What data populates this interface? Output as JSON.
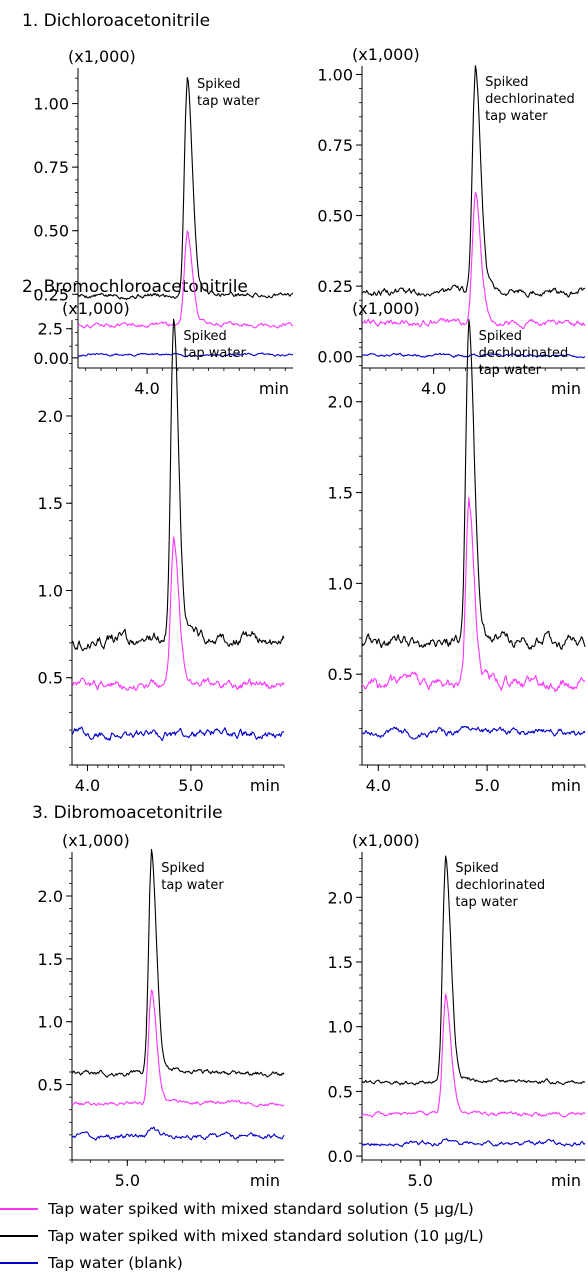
{
  "panels": [
    {
      "title": "1. Dichloroacetonitrile",
      "charts": [
        {
          "annotation": [
            "Spiked",
            "tap water"
          ],
          "scale_label": "(x1,000)"
        },
        {
          "annotation": [
            "Spiked",
            "dechlorinated",
            "tap water"
          ],
          "scale_label": "(x1,000)"
        }
      ]
    },
    {
      "title": "2. Bromochloroacetonitrile",
      "charts": [
        {
          "annotation": [
            "Spiked",
            "tap water"
          ],
          "scale_label": "(x1,000)"
        },
        {
          "annotation": [
            "Spiked",
            "dechlorinated",
            "tap water"
          ],
          "scale_label": "(x1,000)"
        }
      ]
    },
    {
      "title": "3. Dibromoacetonitrile",
      "charts": [
        {
          "annotation": [
            "Spiked",
            "tap water"
          ],
          "scale_label": "(x1,000)"
        },
        {
          "annotation": [
            "Spiked",
            "dechlorinated",
            "tap water"
          ],
          "scale_label": "(x1,000)"
        }
      ]
    }
  ],
  "legend": [
    {
      "label": "Tap water spiked with mixed standard solution (5 µg/L)",
      "color": "#ff33ff"
    },
    {
      "label": "Tap water spiked with mixed standard solution (10 µg/L)",
      "color": "#000000"
    },
    {
      "label": "Tap water (blank)",
      "color": "#0000cc"
    }
  ],
  "chart_data": [
    {
      "type": "line",
      "title": "1. Dichloroacetonitrile",
      "annotation": "Spiked tap water",
      "xlabel": "min",
      "ylabel": "(x1,000)",
      "xlim": [
        3.55,
        4.95
      ],
      "ylim": [
        -0.04,
        1.14
      ],
      "xticks": [
        4.0
      ],
      "xticklabels": [
        "4.0"
      ],
      "yticks": [
        0.0,
        0.25,
        0.5,
        0.75,
        1.0
      ],
      "yticklabels": [
        "0.00",
        "0.25",
        "0.50",
        "0.75",
        "1.00"
      ],
      "series": [
        {
          "color": "#000000",
          "baseline": 0.245,
          "peak_x": 4.26,
          "peak_height": 0.82,
          "noise": 0.006
        },
        {
          "color": "#ff33ff",
          "baseline": 0.13,
          "peak_x": 4.26,
          "peak_height": 0.35,
          "noise": 0.005
        },
        {
          "color": "#0000cc",
          "baseline": 0.012,
          "peak_x": 4.26,
          "peak_height": 0.0,
          "noise": 0.003
        }
      ]
    },
    {
      "type": "line",
      "title": "1. Dichloroacetonitrile",
      "annotation": "Spiked dechlorinated tap water",
      "xlabel": "min",
      "ylabel": "(x1,000)",
      "xlim": [
        3.55,
        4.95
      ],
      "ylim": [
        -0.04,
        1.03
      ],
      "xticks": [
        4.0
      ],
      "xticklabels": [
        "4.0"
      ],
      "yticks": [
        0.0,
        0.25,
        0.5,
        0.75,
        1.0
      ],
      "yticklabels": [
        "0.00",
        "0.25",
        "0.50",
        "0.75",
        "1.00"
      ],
      "series": [
        {
          "color": "#000000",
          "baseline": 0.23,
          "peak_x": 4.26,
          "peak_height": 0.76,
          "noise": 0.008
        },
        {
          "color": "#ff33ff",
          "baseline": 0.12,
          "peak_x": 4.26,
          "peak_height": 0.43,
          "noise": 0.007
        },
        {
          "color": "#0000cc",
          "baseline": 0.005,
          "peak_x": 4.26,
          "peak_height": 0.0,
          "noise": 0.003
        }
      ]
    },
    {
      "type": "line",
      "title": "2. Bromochloroacetonitrile",
      "annotation": "Spiked tap water",
      "xlabel": "min",
      "ylabel": "(x1,000)",
      "xlim": [
        3.85,
        5.9
      ],
      "ylim": [
        0.0,
        2.55
      ],
      "xticks": [
        4.0,
        5.0
      ],
      "xticklabels": [
        "4.0",
        "5.0"
      ],
      "yticks": [
        0.5,
        1.0,
        1.5,
        2.0,
        2.5
      ],
      "yticklabels": [
        "0.5",
        "1.0",
        "1.5",
        "2.0",
        "2.5"
      ],
      "series": [
        {
          "color": "#000000",
          "baseline": 0.72,
          "peak_x": 4.83,
          "peak_height": 1.75,
          "noise": 0.02
        },
        {
          "color": "#ff33ff",
          "baseline": 0.46,
          "peak_x": 4.83,
          "peak_height": 0.8,
          "noise": 0.015
        },
        {
          "color": "#0000cc",
          "baseline": 0.18,
          "peak_x": 4.83,
          "peak_height": 0.0,
          "noise": 0.015
        }
      ]
    },
    {
      "type": "line",
      "title": "2. Bromochloroacetonitrile",
      "annotation": "Spiked dechlorinated tap water",
      "xlabel": "min",
      "ylabel": "(x1,000)",
      "xlim": [
        3.85,
        5.9
      ],
      "ylim": [
        0.0,
        2.45
      ],
      "xticks": [
        4.0,
        5.0
      ],
      "xticklabels": [
        "4.0",
        "5.0"
      ],
      "yticks": [
        0.5,
        1.0,
        1.5,
        2.0
      ],
      "yticklabels": [
        "0.5",
        "1.0",
        "1.5",
        "2.0"
      ],
      "series": [
        {
          "color": "#000000",
          "baseline": 0.68,
          "peak_x": 4.83,
          "peak_height": 1.68,
          "noise": 0.02
        },
        {
          "color": "#ff33ff",
          "baseline": 0.45,
          "peak_x": 4.83,
          "peak_height": 0.93,
          "noise": 0.02
        },
        {
          "color": "#0000cc",
          "baseline": 0.18,
          "peak_x": 4.83,
          "peak_height": 0.0,
          "noise": 0.012
        }
      ]
    },
    {
      "type": "line",
      "title": "3. Dibromoacetonitrile",
      "annotation": "Spiked tap water",
      "xlabel": "min",
      "ylabel": "(x1,000)",
      "xlim": [
        4.7,
        5.85
      ],
      "ylim": [
        -0.1,
        2.35
      ],
      "xticks": [
        5.0
      ],
      "xticklabels": [
        "5.0"
      ],
      "yticks": [
        0.5,
        1.0,
        1.5,
        2.0
      ],
      "yticklabels": [
        "0.5",
        "1.0",
        "1.5",
        "2.0"
      ],
      "series": [
        {
          "color": "#000000",
          "baseline": 0.59,
          "peak_x": 5.13,
          "peak_height": 1.69,
          "noise": 0.012
        },
        {
          "color": "#ff33ff",
          "baseline": 0.35,
          "peak_x": 5.13,
          "peak_height": 0.86,
          "noise": 0.01
        },
        {
          "color": "#0000cc",
          "baseline": 0.09,
          "peak_x": 5.13,
          "peak_height": 0.05,
          "noise": 0.012
        }
      ]
    },
    {
      "type": "line",
      "title": "3. Dibromoacetonitrile",
      "annotation": "Spiked dechlorinated tap water",
      "xlabel": "min",
      "ylabel": "(x1,000)",
      "xlim": [
        4.7,
        5.85
      ],
      "ylim": [
        -0.03,
        2.35
      ],
      "xticks": [
        5.0
      ],
      "xticklabels": [
        "5.0"
      ],
      "yticks": [
        0.0,
        0.5,
        1.0,
        1.5,
        2.0
      ],
      "yticklabels": [
        "0.0",
        "0.5",
        "1.0",
        "1.5",
        "2.0"
      ],
      "series": [
        {
          "color": "#000000",
          "baseline": 0.57,
          "peak_x": 5.13,
          "peak_height": 1.65,
          "noise": 0.01
        },
        {
          "color": "#ff33ff",
          "baseline": 0.32,
          "peak_x": 5.13,
          "peak_height": 0.88,
          "noise": 0.01
        },
        {
          "color": "#0000cc",
          "baseline": 0.1,
          "peak_x": 5.13,
          "peak_height": 0.04,
          "noise": 0.01
        }
      ]
    }
  ]
}
